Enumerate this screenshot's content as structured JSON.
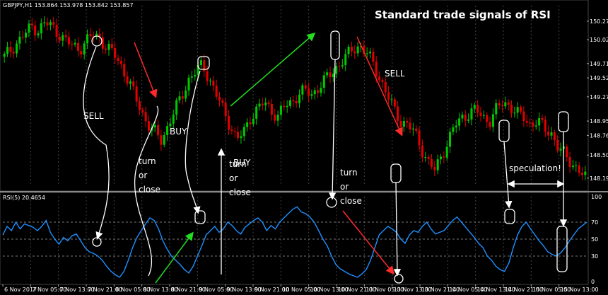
{
  "header": {
    "symbol_line": "GBPJPY,H1  153.864 153.978 153.842 153.857",
    "rsi_line": "RSI(5) 20.4654"
  },
  "title": "Standard trade signals of RSI",
  "annotations": {
    "sell_1": "SELL",
    "buy_1": "BUY",
    "buy_2": "BUY",
    "sell_2": "SELL",
    "speculation": "speculation!",
    "turn_1": [
      "turn",
      "or",
      "close"
    ],
    "turn_2": [
      "turn",
      "or",
      "close"
    ],
    "turn_3": [
      "turn",
      "or",
      "close"
    ]
  },
  "colors": {
    "background": "#000000",
    "bull": "#00c800",
    "bear": "#e00000",
    "rsi_line": "#1e90ff",
    "arrow_red": "#ff2a2a",
    "arrow_green": "#22dd22",
    "annotation": "#ffffff"
  },
  "chart_data": [
    {
      "type": "candlestick",
      "title": "GBPJPY,H1",
      "y_tick_labels": [
        "150.270",
        "150.025",
        "149.710",
        "149.520",
        "149.270",
        "148.950",
        "148.760",
        "148.500",
        "148.195"
      ],
      "ylim": [
        148.1,
        150.4
      ],
      "x_tick_labels": [
        "6 Nov 2017",
        "7 Nov 05:00",
        "7 Nov 13:00",
        "7 Nov 21:00",
        "8 Nov 05:00",
        "8 Nov 13:00",
        "8 Nov 21:00",
        "9 Nov 05:00",
        "9 Nov 13:00",
        "9 Nov 21:00",
        "10 Nov 05:00",
        "10 Nov 13:00",
        "10 Nov 21:00",
        "13 Nov 05:00",
        "13 Nov 13:00",
        "13 Nov 21:00",
        "14 Nov 05:00",
        "14 Nov 13:00",
        "14 Nov 21:00",
        "15 Nov 05:00",
        "15 Nov 13:00"
      ],
      "close_path": [
        149.8,
        149.9,
        150.0,
        150.1,
        150.2,
        150.15,
        150.25,
        150.2,
        150.1,
        150.0,
        149.95,
        149.9,
        150.0,
        150.1,
        150.05,
        149.9,
        149.85,
        149.7,
        149.5,
        149.3,
        149.1,
        148.9,
        148.8,
        148.7,
        148.9,
        149.1,
        149.3,
        149.5,
        149.6,
        149.7,
        149.5,
        149.3,
        149.1,
        148.9,
        148.7,
        148.8,
        149.0,
        149.1,
        149.2,
        149.1,
        149.0,
        149.15,
        149.2,
        149.3,
        149.35,
        149.3,
        149.4,
        149.5,
        149.6,
        149.7,
        149.8,
        149.9,
        149.95,
        149.85,
        149.7,
        149.5,
        149.3,
        149.1,
        148.95,
        148.9,
        148.8,
        148.6,
        148.4,
        148.3,
        148.5,
        148.7,
        148.9,
        149.0,
        149.05,
        149.1,
        149.0,
        148.95,
        149.1,
        149.2,
        149.15,
        149.05,
        149.0,
        148.9,
        148.95,
        148.85,
        148.8,
        148.6,
        148.5,
        148.4,
        148.3,
        148.2
      ],
      "grid": true,
      "legend": "none"
    },
    {
      "type": "line",
      "title": "RSI(5) 20.4654",
      "y_tick_labels": [
        "100",
        "70",
        "50",
        "30",
        "0"
      ],
      "ylim": [
        0,
        100
      ],
      "levels": [
        70,
        50,
        30
      ],
      "series": [
        {
          "values": [
            55,
            65,
            60,
            70,
            62,
            68,
            66,
            64,
            60,
            65,
            72,
            58,
            50,
            44,
            52,
            48,
            54,
            56,
            48,
            40,
            35,
            33,
            30,
            25,
            18,
            12,
            8,
            5,
            12,
            25,
            40,
            52,
            60,
            68,
            75,
            72,
            62,
            48,
            38,
            30,
            25,
            20,
            14,
            10,
            18,
            30,
            42,
            55,
            60,
            65,
            58,
            62,
            70,
            66,
            60,
            56,
            64,
            68,
            72,
            75,
            70,
            60,
            66,
            62,
            70,
            75,
            80,
            85,
            88,
            82,
            80,
            76,
            70,
            60,
            50,
            42,
            30,
            20,
            15,
            12,
            9,
            7,
            5,
            9,
            14,
            25,
            40,
            55,
            60,
            65,
            62,
            58,
            50,
            45,
            55,
            60,
            58,
            65,
            70,
            62,
            56,
            58,
            60,
            66,
            72,
            76,
            70,
            64,
            58,
            52,
            45,
            40,
            30,
            25,
            18,
            14,
            12,
            22,
            40,
            55,
            65,
            70,
            62,
            55,
            48,
            42,
            35,
            32,
            30,
            34,
            40,
            48,
            55,
            62,
            66,
            70
          ]
        }
      ],
      "grid": true,
      "legend": "none"
    }
  ]
}
